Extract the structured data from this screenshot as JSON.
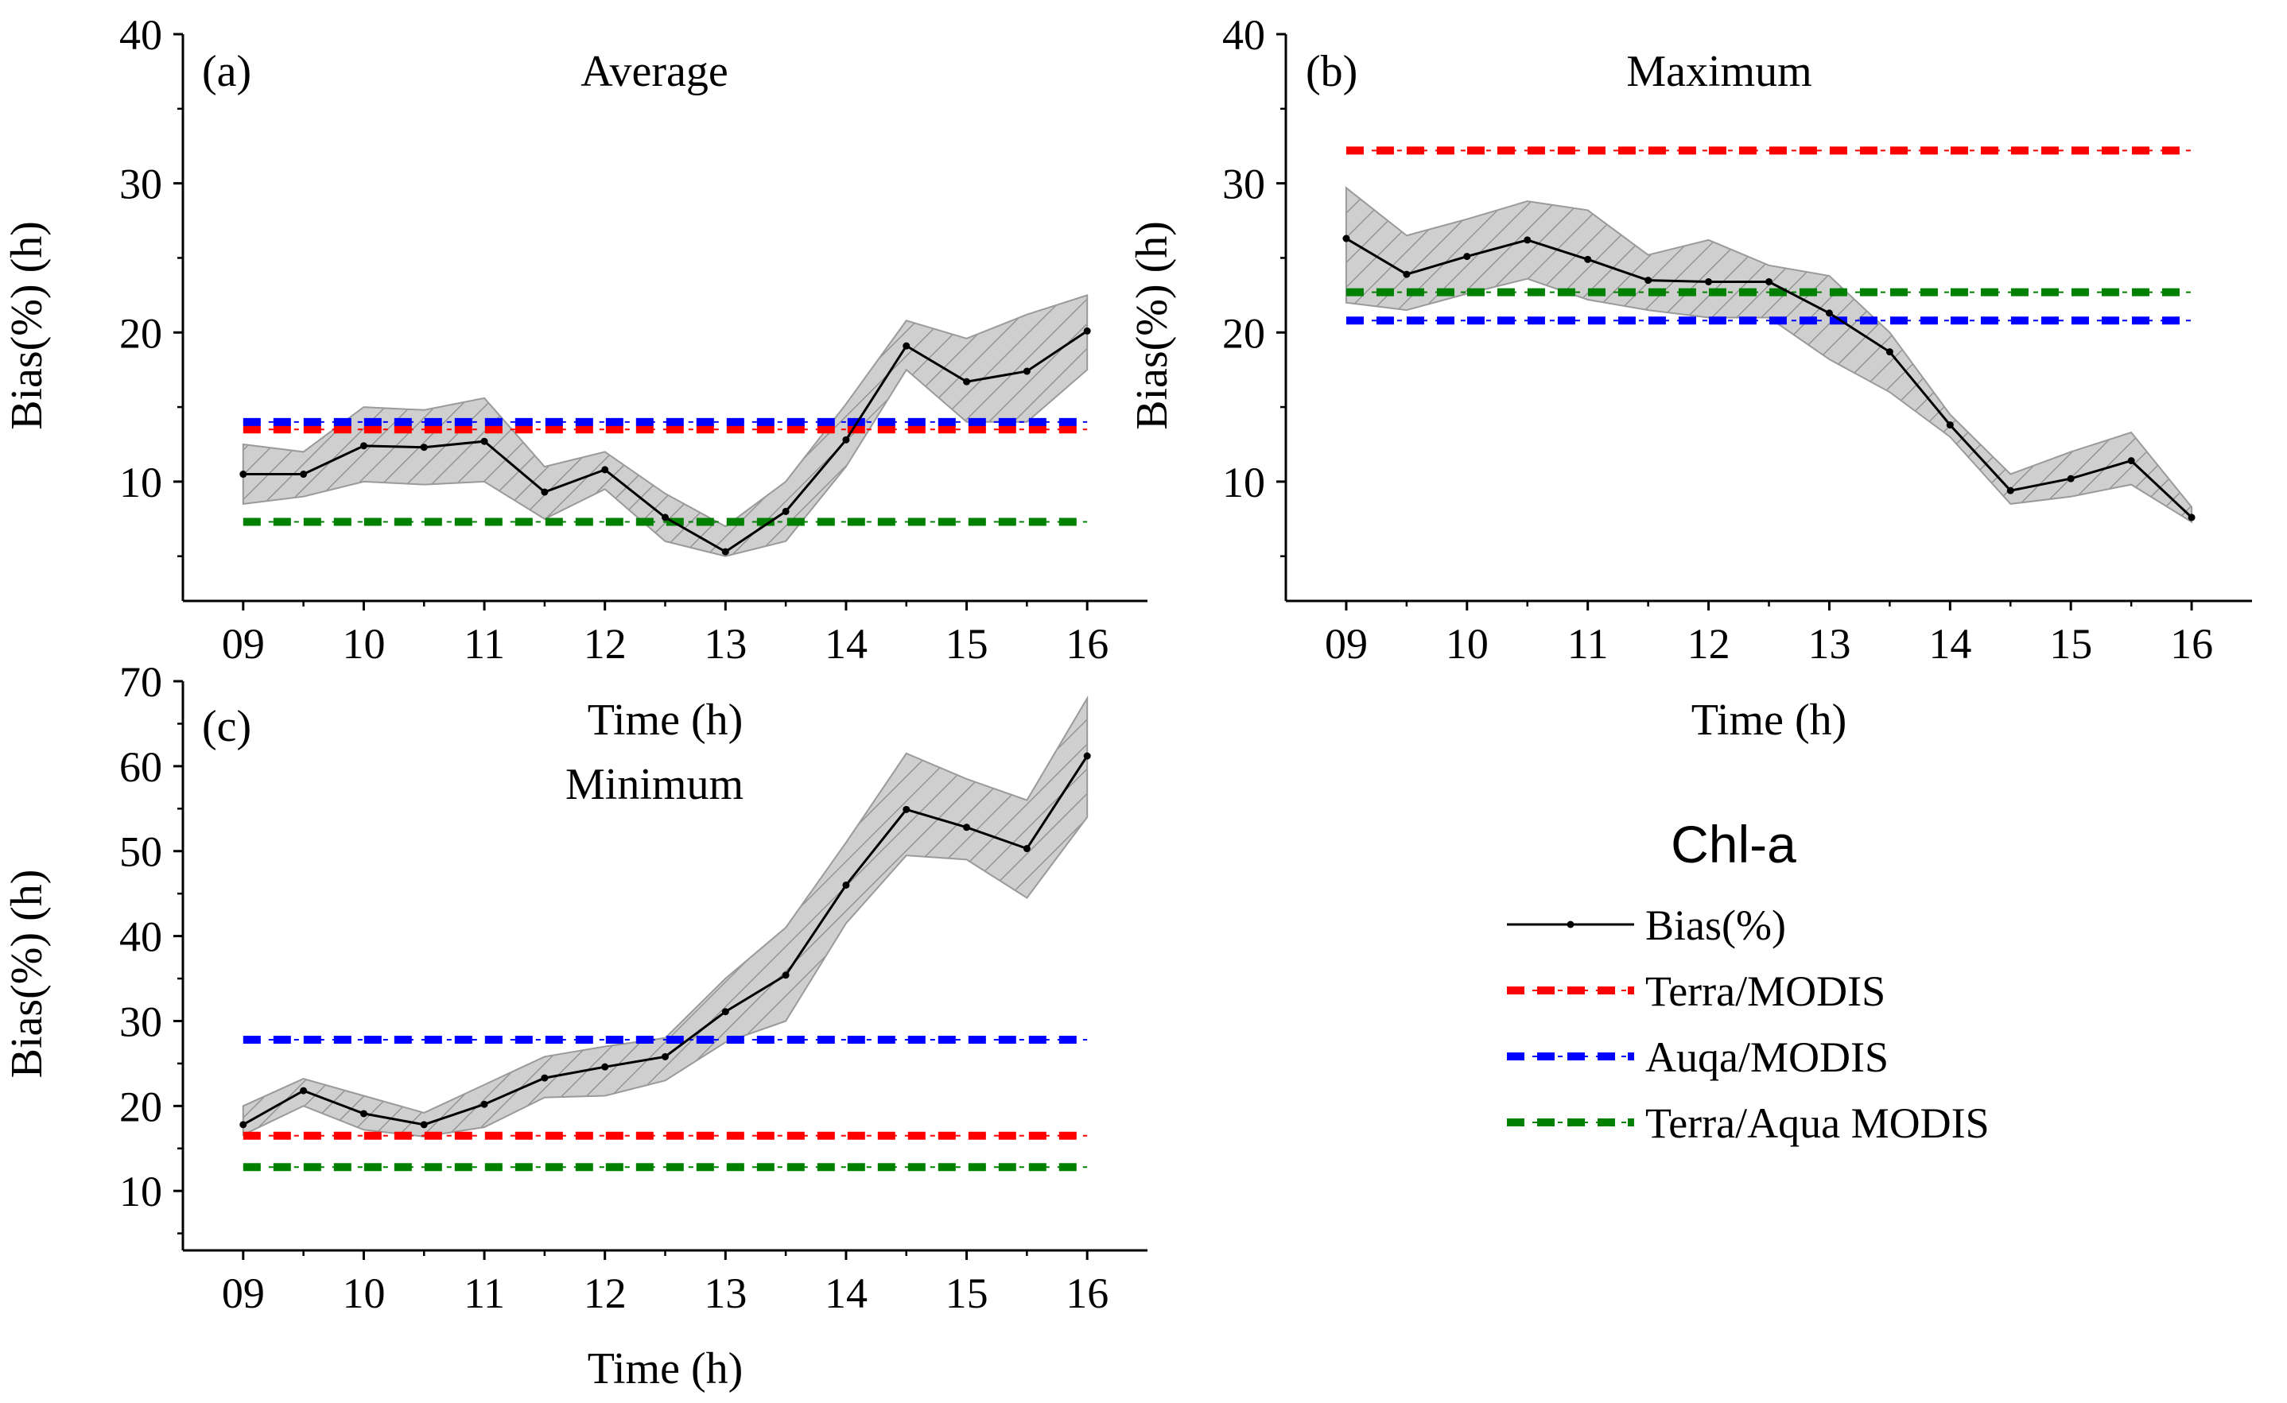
{
  "figure": {
    "legend": {
      "title": "Chl-a",
      "entries": [
        {
          "label": "Bias(%)",
          "style": "solid-marker",
          "color": "#000000"
        },
        {
          "label": "Terra/MODIS",
          "style": "dash",
          "color": "#ff0000"
        },
        {
          "label": "Auqa/MODIS",
          "style": "dash",
          "color": "#0000ff"
        },
        {
          "label": "Terra/Aqua MODIS",
          "style": "dash",
          "color": "#008000"
        }
      ]
    }
  },
  "chart_data": [
    {
      "type": "line",
      "panel_label": "(a)",
      "title": "Average",
      "xlabel": "Time (h)",
      "ylabel": "Bias(%) (h)",
      "xlim": [
        8.5,
        16.5
      ],
      "ylim": [
        2,
        40
      ],
      "xticks": [
        9,
        10,
        11,
        12,
        13,
        14,
        15,
        16
      ],
      "xtick_labels": [
        "09",
        "10",
        "11",
        "12",
        "13",
        "14",
        "15",
        "16"
      ],
      "yticks": [
        10,
        20,
        30,
        40
      ],
      "ytick_labels": [
        "10",
        "20",
        "30",
        "40"
      ],
      "x": [
        9,
        9.5,
        10,
        10.5,
        11,
        11.5,
        12,
        12.5,
        13,
        13.5,
        14,
        14.5,
        15,
        15.5,
        16
      ],
      "series": [
        {
          "name": "Bias(%)",
          "values": [
            10.5,
            10.5,
            12.4,
            12.3,
            12.7,
            9.3,
            10.8,
            7.6,
            5.3,
            8.0,
            12.8,
            19.1,
            16.7,
            17.4,
            20.1
          ]
        },
        {
          "name": "Bias(%) upper",
          "values": [
            12.5,
            12.0,
            15.0,
            14.8,
            15.6,
            11.0,
            12.0,
            9.2,
            7.0,
            10.0,
            15.2,
            20.8,
            19.6,
            21.2,
            22.5
          ]
        },
        {
          "name": "Bias(%) lower",
          "values": [
            8.5,
            9.0,
            10.0,
            9.8,
            10.0,
            7.5,
            9.5,
            6.0,
            5.0,
            6.0,
            11.0,
            17.5,
            14.0,
            14.0,
            17.5
          ]
        }
      ],
      "reference_lines": [
        {
          "name": "Terra/MODIS",
          "value": 13.5,
          "color": "#ff0000"
        },
        {
          "name": "Auqa/MODIS",
          "value": 14.0,
          "color": "#0000ff"
        },
        {
          "name": "Terra/Aqua MODIS",
          "value": 7.3,
          "color": "#008000"
        }
      ]
    },
    {
      "type": "line",
      "panel_label": "(b)",
      "title": "Maximum",
      "xlabel": "Time (h)",
      "ylabel": "Bias(%) (h)",
      "xlim": [
        8.5,
        16.5
      ],
      "ylim": [
        2,
        40
      ],
      "xticks": [
        9,
        10,
        11,
        12,
        13,
        14,
        15,
        16
      ],
      "xtick_labels": [
        "09",
        "10",
        "11",
        "12",
        "13",
        "14",
        "15",
        "16"
      ],
      "yticks": [
        10,
        20,
        30,
        40
      ],
      "ytick_labels": [
        "10",
        "20",
        "30",
        "40"
      ],
      "x": [
        9,
        9.5,
        10,
        10.5,
        11,
        11.5,
        12,
        12.5,
        13,
        13.5,
        14,
        14.5,
        15,
        15.5,
        16
      ],
      "series": [
        {
          "name": "Bias(%)",
          "values": [
            26.3,
            23.9,
            25.1,
            26.2,
            24.9,
            23.5,
            23.4,
            23.4,
            21.3,
            18.7,
            13.8,
            9.4,
            10.2,
            11.4,
            7.6
          ]
        },
        {
          "name": "Bias(%) upper",
          "values": [
            29.7,
            26.5,
            27.6,
            28.8,
            28.2,
            25.2,
            26.2,
            24.5,
            23.8,
            20.0,
            14.5,
            10.5,
            12.0,
            13.3,
            8.3
          ]
        },
        {
          "name": "Bias(%) lower",
          "values": [
            22.0,
            21.5,
            22.6,
            23.6,
            22.2,
            21.5,
            21.0,
            21.0,
            18.2,
            16.0,
            13.0,
            8.5,
            9.0,
            9.8,
            7.3
          ]
        }
      ],
      "reference_lines": [
        {
          "name": "Terra/MODIS",
          "value": 32.2,
          "color": "#ff0000"
        },
        {
          "name": "Auqa/MODIS",
          "value": 20.8,
          "color": "#0000ff"
        },
        {
          "name": "Terra/Aqua MODIS",
          "value": 22.7,
          "color": "#008000"
        }
      ]
    },
    {
      "type": "line",
      "panel_label": "(c)",
      "title": "Minimum",
      "xlabel": "Time (h)",
      "ylabel": "Bias(%) (h)",
      "xlim": [
        8.5,
        16.5
      ],
      "ylim": [
        3,
        70
      ],
      "xticks": [
        9,
        10,
        11,
        12,
        13,
        14,
        15,
        16
      ],
      "xtick_labels": [
        "09",
        "10",
        "11",
        "12",
        "13",
        "14",
        "15",
        "16"
      ],
      "yticks": [
        10,
        20,
        30,
        40,
        50,
        60,
        70
      ],
      "ytick_labels": [
        "10",
        "20",
        "30",
        "40",
        "50",
        "60",
        "70"
      ],
      "x": [
        9,
        9.5,
        10,
        10.5,
        11,
        11.5,
        12,
        12.5,
        13,
        13.5,
        14,
        14.5,
        15,
        15.5,
        16
      ],
      "series": [
        {
          "name": "Bias(%)",
          "values": [
            17.8,
            21.8,
            19.1,
            17.8,
            20.2,
            23.3,
            24.6,
            25.8,
            31.1,
            35.4,
            46.0,
            54.9,
            52.8,
            50.3,
            61.2
          ]
        },
        {
          "name": "Bias(%) upper",
          "values": [
            20.0,
            23.2,
            21.2,
            19.2,
            22.5,
            25.8,
            27.0,
            28.0,
            35.0,
            41.0,
            51.0,
            61.5,
            58.5,
            56.0,
            68.0
          ]
        },
        {
          "name": "Bias(%) lower",
          "values": [
            16.6,
            20.0,
            17.2,
            16.4,
            17.5,
            21.0,
            21.2,
            23.0,
            27.5,
            30.0,
            41.5,
            49.5,
            49.0,
            44.5,
            54.0
          ]
        }
      ],
      "reference_lines": [
        {
          "name": "Terra/MODIS",
          "value": 16.5,
          "color": "#ff0000"
        },
        {
          "name": "Auqa/MODIS",
          "value": 27.8,
          "color": "#0000ff"
        },
        {
          "name": "Terra/Aqua MODIS",
          "value": 12.8,
          "color": "#008000"
        }
      ]
    }
  ]
}
